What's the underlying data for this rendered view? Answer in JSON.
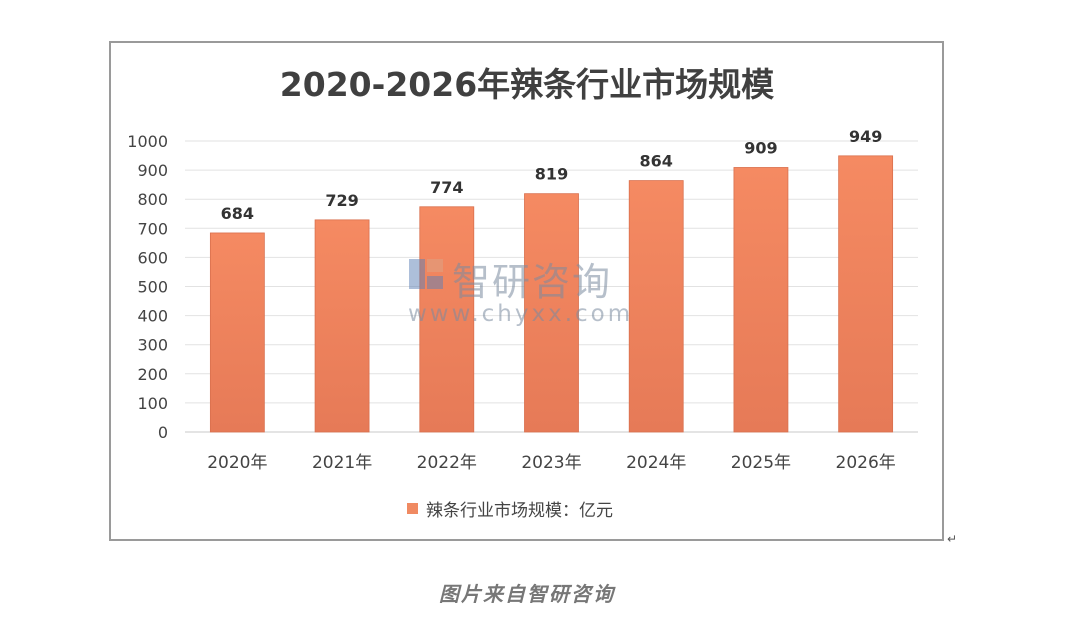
{
  "chart_data": {
    "type": "bar",
    "title": "2020-2026年辣条行业市场规模",
    "categories": [
      "2020年",
      "2021年",
      "2022年",
      "2023年",
      "2024年",
      "2025年",
      "2026年"
    ],
    "series": [
      {
        "name": "辣条行业市场规模：亿元",
        "values": [
          684,
          729,
          774,
          819,
          864,
          909,
          949
        ]
      }
    ],
    "ylim": [
      0,
      1000
    ],
    "yticks": [
      0,
      100,
      200,
      300,
      400,
      500,
      600,
      700,
      800,
      900,
      1000
    ],
    "grid": true,
    "legend_position": "bottom",
    "bar_color": "#f08a62"
  },
  "watermark": {
    "brand": "智研咨询",
    "url": "www.chyxx.com"
  },
  "caption": "图片来自智研咨询",
  "corner_mark": "↵"
}
